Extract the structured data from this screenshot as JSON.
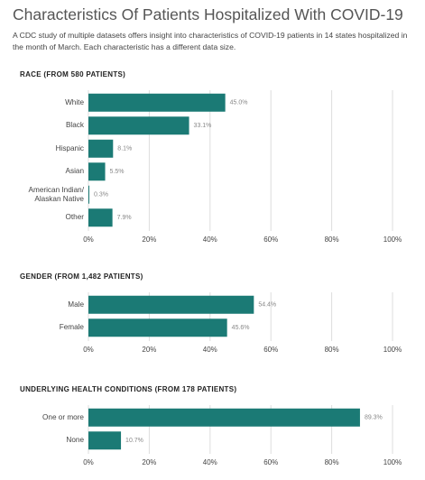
{
  "title": "Characteristics Of Patients Hospitalized With COVID-19",
  "subtitle": "A CDC study of multiple datasets offers insight into characteristics of COVID-19 patients in 14 states hospitalized in the month of March. Each characteristic has a different data size.",
  "chart_data": [
    {
      "type": "bar",
      "orientation": "horizontal",
      "title": "RACE (FROM 580 PATIENTS)",
      "categories": [
        "White",
        "Black",
        "Hispanic",
        "Asian",
        "American Indian/ Alaskan Native",
        "Other"
      ],
      "values": [
        45.0,
        33.1,
        8.1,
        5.5,
        0.3,
        7.9
      ],
      "value_labels": [
        "45.0%",
        "33.1%",
        "8.1%",
        "5.5%",
        "0.3%",
        "7.9%"
      ],
      "color": "#1b7a75",
      "xlim": [
        0,
        100
      ],
      "xticks": [
        {
          "value": 0,
          "label": "0%"
        },
        {
          "value": 20,
          "label": "20%"
        },
        {
          "value": 40,
          "label": "40%"
        },
        {
          "value": 60,
          "label": "60%"
        },
        {
          "value": 80,
          "label": "80%"
        },
        {
          "value": 100,
          "label": "100%"
        }
      ],
      "grid": true
    },
    {
      "type": "bar",
      "orientation": "horizontal",
      "title": "GENDER (FROM 1,482 PATIENTS)",
      "categories": [
        "Male",
        "Female"
      ],
      "values": [
        54.4,
        45.6
      ],
      "value_labels": [
        "54.4%",
        "45.6%"
      ],
      "color": "#1b7a75",
      "xlim": [
        0,
        100
      ],
      "xticks": [
        {
          "value": 0,
          "label": "0%"
        },
        {
          "value": 20,
          "label": "20%"
        },
        {
          "value": 40,
          "label": "40%"
        },
        {
          "value": 60,
          "label": "60%"
        },
        {
          "value": 80,
          "label": "80%"
        },
        {
          "value": 100,
          "label": "100%"
        }
      ],
      "grid": true
    },
    {
      "type": "bar",
      "orientation": "horizontal",
      "title": "UNDERLYING HEALTH CONDITIONS (FROM 178 PATIENTS)",
      "categories": [
        "One or more",
        "None"
      ],
      "values": [
        89.3,
        10.7
      ],
      "value_labels": [
        "89.3%",
        "10.7%"
      ],
      "color": "#1b7a75",
      "xlim": [
        0,
        100
      ],
      "xticks": [
        {
          "value": 0,
          "label": "0%"
        },
        {
          "value": 20,
          "label": "20%"
        },
        {
          "value": 40,
          "label": "40%"
        },
        {
          "value": 60,
          "label": "60%"
        },
        {
          "value": 80,
          "label": "80%"
        },
        {
          "value": 100,
          "label": "100%"
        }
      ],
      "grid": true
    }
  ]
}
